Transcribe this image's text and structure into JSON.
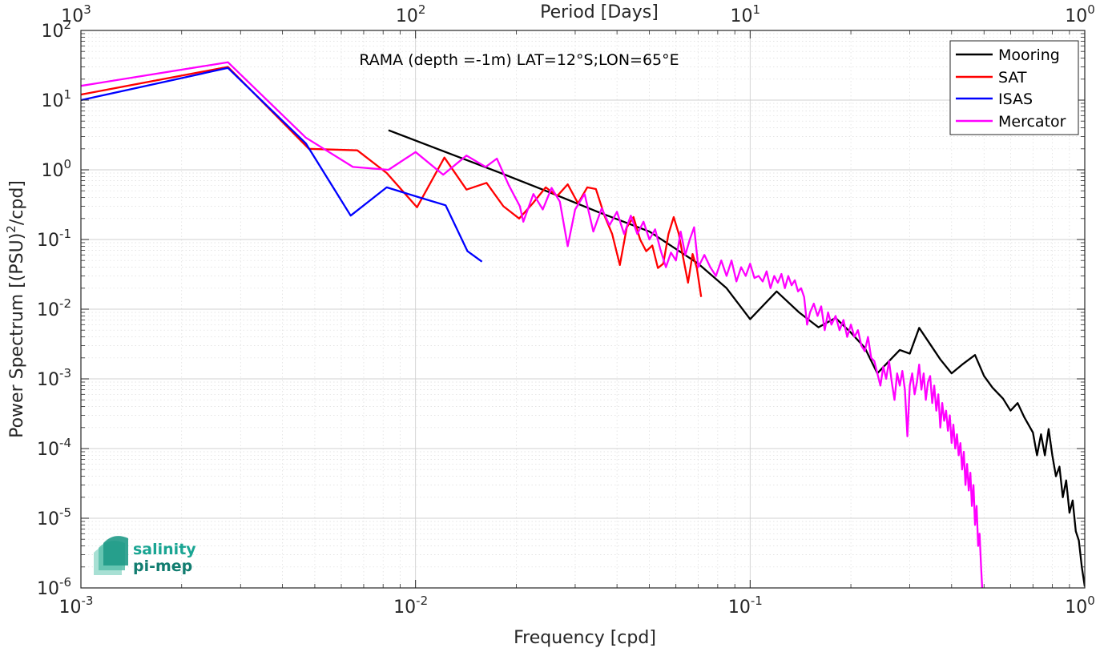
{
  "chart_data": {
    "type": "line",
    "title": "RAMA (depth =-1m) LAT=12°S;LON=65°E",
    "xlabel": "Frequency [cpd]",
    "ylabel_base": "Power Spectrum [(PSU)",
    "ylabel_sup": "2",
    "ylabel_tail": "/cpd]",
    "top_xlabel": "Period [Days]",
    "xscale": "log",
    "yscale": "log",
    "xlim": [
      0.001,
      1
    ],
    "ylim": [
      1e-06,
      100
    ],
    "grid": true,
    "legend_position": "top-right",
    "x_ticks": [
      {
        "value": 0.001,
        "base": "10",
        "exp": "-3"
      },
      {
        "value": 0.01,
        "base": "10",
        "exp": "-2"
      },
      {
        "value": 0.1,
        "base": "10",
        "exp": "-1"
      },
      {
        "value": 1,
        "base": "10",
        "exp": "0"
      }
    ],
    "top_ticks": [
      {
        "value": 0.001,
        "base": "10",
        "exp": "3"
      },
      {
        "value": 0.01,
        "base": "10",
        "exp": "2"
      },
      {
        "value": 0.1,
        "base": "10",
        "exp": "1"
      },
      {
        "value": 1,
        "base": "10",
        "exp": "0"
      }
    ],
    "y_ticks": [
      {
        "value": 100,
        "base": "10",
        "exp": "2"
      },
      {
        "value": 10,
        "base": "10",
        "exp": "1"
      },
      {
        "value": 1,
        "base": "10",
        "exp": "0"
      },
      {
        "value": 0.1,
        "base": "10",
        "exp": "-1"
      },
      {
        "value": 0.01,
        "base": "10",
        "exp": "-2"
      },
      {
        "value": 0.001,
        "base": "10",
        "exp": "-3"
      },
      {
        "value": 0.0001,
        "base": "10",
        "exp": "-4"
      },
      {
        "value": 1e-05,
        "base": "10",
        "exp": "-5"
      },
      {
        "value": 1e-06,
        "base": "10",
        "exp": "-6"
      }
    ],
    "series": [
      {
        "name": "Mooring",
        "color": "#000000",
        "points": [
          [
            0.0083,
            3.7
          ],
          [
            0.0125,
            1.75
          ],
          [
            0.0185,
            0.85
          ],
          [
            0.025,
            0.48
          ],
          [
            0.035,
            0.25
          ],
          [
            0.05,
            0.13
          ],
          [
            0.07,
            0.045
          ],
          [
            0.085,
            0.02
          ],
          [
            0.1,
            0.0072
          ],
          [
            0.12,
            0.018
          ],
          [
            0.14,
            0.009
          ],
          [
            0.16,
            0.0055
          ],
          [
            0.18,
            0.0075
          ],
          [
            0.2,
            0.0046
          ],
          [
            0.22,
            0.0028
          ],
          [
            0.24,
            0.0012
          ],
          [
            0.26,
            0.0018
          ],
          [
            0.28,
            0.0026
          ],
          [
            0.3,
            0.0023
          ],
          [
            0.32,
            0.0054
          ],
          [
            0.34,
            0.0035
          ],
          [
            0.37,
            0.0019
          ],
          [
            0.4,
            0.0012
          ],
          [
            0.43,
            0.0016
          ],
          [
            0.47,
            0.0022
          ],
          [
            0.5,
            0.0011
          ],
          [
            0.53,
            0.00075
          ],
          [
            0.57,
            0.00052
          ],
          [
            0.6,
            0.00035
          ],
          [
            0.63,
            0.00045
          ],
          [
            0.66,
            0.00028
          ],
          [
            0.7,
            0.00017
          ],
          [
            0.72,
            8e-05
          ],
          [
            0.74,
            0.00016
          ],
          [
            0.76,
            8e-05
          ],
          [
            0.78,
            0.00019
          ],
          [
            0.8,
            8e-05
          ],
          [
            0.82,
            4e-05
          ],
          [
            0.84,
            5.5e-05
          ],
          [
            0.86,
            2e-05
          ],
          [
            0.88,
            3.5e-05
          ],
          [
            0.9,
            1.2e-05
          ],
          [
            0.92,
            1.8e-05
          ],
          [
            0.94,
            6.5e-06
          ],
          [
            0.96,
            4.8e-06
          ],
          [
            0.98,
            2e-06
          ],
          [
            1.0,
            1.05e-06
          ]
        ]
      },
      {
        "name": "SAT",
        "color": "#ff0000",
        "points": [
          [
            0.001,
            12
          ],
          [
            0.00275,
            30
          ],
          [
            0.0048,
            2.0
          ],
          [
            0.0067,
            1.9
          ],
          [
            0.0082,
            0.9
          ],
          [
            0.0101,
            0.29
          ],
          [
            0.0122,
            1.5
          ],
          [
            0.0142,
            0.52
          ],
          [
            0.0163,
            0.65
          ],
          [
            0.0183,
            0.3
          ],
          [
            0.0204,
            0.2
          ],
          [
            0.0224,
            0.33
          ],
          [
            0.0245,
            0.56
          ],
          [
            0.0265,
            0.42
          ],
          [
            0.0285,
            0.62
          ],
          [
            0.0306,
            0.33
          ],
          [
            0.0326,
            0.56
          ],
          [
            0.0346,
            0.53
          ],
          [
            0.0367,
            0.22
          ],
          [
            0.0387,
            0.12
          ],
          [
            0.0408,
            0.043
          ],
          [
            0.0428,
            0.15
          ],
          [
            0.0448,
            0.21
          ],
          [
            0.0469,
            0.1
          ],
          [
            0.0489,
            0.068
          ],
          [
            0.051,
            0.082
          ],
          [
            0.053,
            0.039
          ],
          [
            0.055,
            0.045
          ],
          [
            0.057,
            0.12
          ],
          [
            0.0591,
            0.21
          ],
          [
            0.0612,
            0.12
          ],
          [
            0.0632,
            0.052
          ],
          [
            0.0652,
            0.024
          ],
          [
            0.0673,
            0.062
          ],
          [
            0.0693,
            0.039
          ],
          [
            0.0714,
            0.015
          ]
        ]
      },
      {
        "name": "ISAS",
        "color": "#0000ff",
        "points": [
          [
            0.001,
            10
          ],
          [
            0.00275,
            29
          ],
          [
            0.0047,
            2.4
          ],
          [
            0.0064,
            0.22
          ],
          [
            0.0082,
            0.56
          ],
          [
            0.0103,
            0.4
          ],
          [
            0.0123,
            0.31
          ],
          [
            0.0143,
            0.068
          ],
          [
            0.0158,
            0.048
          ]
        ]
      },
      {
        "name": "Mercator",
        "color": "#ff00ff",
        "points": [
          [
            0.001,
            16
          ],
          [
            0.00275,
            35
          ],
          [
            0.0047,
            2.9
          ],
          [
            0.0065,
            1.1
          ],
          [
            0.0083,
            1.0
          ],
          [
            0.01,
            1.8
          ],
          [
            0.0121,
            0.85
          ],
          [
            0.0142,
            1.6
          ],
          [
            0.0162,
            1.1
          ],
          [
            0.0175,
            1.45
          ],
          [
            0.019,
            0.6
          ],
          [
            0.0205,
            0.3
          ],
          [
            0.021,
            0.18
          ],
          [
            0.0225,
            0.45
          ],
          [
            0.024,
            0.27
          ],
          [
            0.0255,
            0.55
          ],
          [
            0.027,
            0.35
          ],
          [
            0.0285,
            0.08
          ],
          [
            0.03,
            0.27
          ],
          [
            0.032,
            0.45
          ],
          [
            0.034,
            0.13
          ],
          [
            0.036,
            0.28
          ],
          [
            0.038,
            0.16
          ],
          [
            0.04,
            0.25
          ],
          [
            0.042,
            0.12
          ],
          [
            0.044,
            0.22
          ],
          [
            0.046,
            0.12
          ],
          [
            0.048,
            0.18
          ],
          [
            0.05,
            0.1
          ],
          [
            0.052,
            0.14
          ],
          [
            0.054,
            0.07
          ],
          [
            0.056,
            0.04
          ],
          [
            0.058,
            0.065
          ],
          [
            0.06,
            0.05
          ],
          [
            0.062,
            0.13
          ],
          [
            0.064,
            0.06
          ],
          [
            0.066,
            0.1
          ],
          [
            0.068,
            0.15
          ],
          [
            0.07,
            0.04
          ],
          [
            0.073,
            0.06
          ],
          [
            0.076,
            0.04
          ],
          [
            0.079,
            0.03
          ],
          [
            0.082,
            0.05
          ],
          [
            0.085,
            0.03
          ],
          [
            0.088,
            0.05
          ],
          [
            0.091,
            0.025
          ],
          [
            0.094,
            0.04
          ],
          [
            0.097,
            0.03
          ],
          [
            0.1,
            0.045
          ],
          [
            0.103,
            0.028
          ],
          [
            0.106,
            0.03
          ],
          [
            0.109,
            0.025
          ],
          [
            0.112,
            0.035
          ],
          [
            0.115,
            0.02
          ],
          [
            0.118,
            0.03
          ],
          [
            0.121,
            0.024
          ],
          [
            0.124,
            0.032
          ],
          [
            0.127,
            0.02
          ],
          [
            0.13,
            0.03
          ],
          [
            0.133,
            0.022
          ],
          [
            0.136,
            0.026
          ],
          [
            0.139,
            0.018
          ],
          [
            0.142,
            0.02
          ],
          [
            0.145,
            0.015
          ],
          [
            0.148,
            0.006
          ],
          [
            0.151,
            0.009
          ],
          [
            0.155,
            0.012
          ],
          [
            0.159,
            0.008
          ],
          [
            0.163,
            0.011
          ],
          [
            0.167,
            0.005
          ],
          [
            0.171,
            0.009
          ],
          [
            0.175,
            0.006
          ],
          [
            0.18,
            0.008
          ],
          [
            0.185,
            0.005
          ],
          [
            0.19,
            0.007
          ],
          [
            0.195,
            0.004
          ],
          [
            0.2,
            0.006
          ],
          [
            0.205,
            0.004
          ],
          [
            0.21,
            0.005
          ],
          [
            0.215,
            0.003
          ],
          [
            0.22,
            0.0025
          ],
          [
            0.225,
            0.004
          ],
          [
            0.23,
            0.002
          ],
          [
            0.235,
            0.0018
          ],
          [
            0.24,
            0.0012
          ],
          [
            0.245,
            0.0008
          ],
          [
            0.25,
            0.0015
          ],
          [
            0.255,
            0.001
          ],
          [
            0.26,
            0.0018
          ],
          [
            0.265,
            0.0009
          ],
          [
            0.27,
            0.0005
          ],
          [
            0.275,
            0.0012
          ],
          [
            0.28,
            0.0008
          ],
          [
            0.285,
            0.0013
          ],
          [
            0.29,
            0.0007
          ],
          [
            0.295,
            0.00015
          ],
          [
            0.3,
            0.0008
          ],
          [
            0.305,
            0.0012
          ],
          [
            0.31,
            0.0006
          ],
          [
            0.315,
            0.0009
          ],
          [
            0.32,
            0.0016
          ],
          [
            0.325,
            0.0007
          ],
          [
            0.33,
            0.0012
          ],
          [
            0.335,
            0.0005
          ],
          [
            0.34,
            0.0009
          ],
          [
            0.345,
            0.0011
          ],
          [
            0.35,
            0.00045
          ],
          [
            0.355,
            0.0008
          ],
          [
            0.36,
            0.00035
          ],
          [
            0.365,
            0.0006
          ],
          [
            0.37,
            0.0002
          ],
          [
            0.375,
            0.00045
          ],
          [
            0.38,
            0.00025
          ],
          [
            0.385,
            0.00035
          ],
          [
            0.39,
            0.00018
          ],
          [
            0.395,
            0.0003
          ],
          [
            0.4,
            0.00012
          ],
          [
            0.405,
            0.00022
          ],
          [
            0.41,
            0.0001
          ],
          [
            0.415,
            0.00016
          ],
          [
            0.42,
            8e-05
          ],
          [
            0.425,
            0.00012
          ],
          [
            0.43,
            5e-05
          ],
          [
            0.435,
            9e-05
          ],
          [
            0.44,
            3e-05
          ],
          [
            0.445,
            6e-05
          ],
          [
            0.45,
            2.5e-05
          ],
          [
            0.455,
            4.5e-05
          ],
          [
            0.46,
            1.5e-05
          ],
          [
            0.465,
            3e-05
          ],
          [
            0.47,
            8e-06
          ],
          [
            0.475,
            1.5e-05
          ],
          [
            0.48,
            4e-06
          ],
          [
            0.485,
            6e-06
          ],
          [
            0.49,
            2e-06
          ],
          [
            0.495,
            8e-07
          ]
        ]
      }
    ]
  },
  "logo": {
    "line1": "salinity",
    "line2": "pi-mep"
  }
}
